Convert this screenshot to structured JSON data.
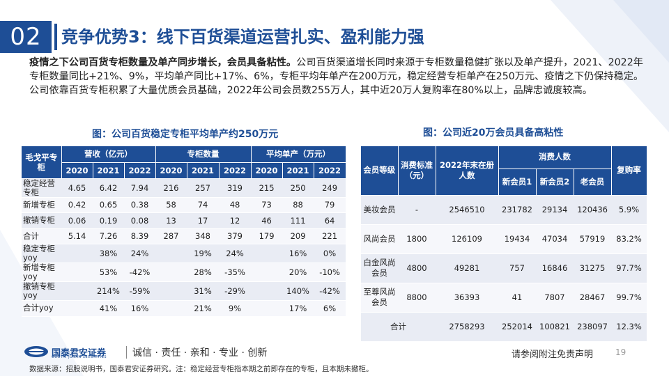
{
  "header": {
    "section_number": "02",
    "title": "竞争优势3：线下百货渠道运营扎实、盈利能力强"
  },
  "intro": {
    "bold": "疫情之下公司百货专柜数量及单产同步增长，会员具备粘性。",
    "text": "公司百货渠道增长同时来源于专柜数量稳健扩张以及单产提升，2021、2022年专柜数量同比+21%、9%，平均单产同比+17%、6%，专柜平均年单产在200万元，稳定经营专柜单产在250万元、疫情之下仍保持稳定。公司依靠百货专柜积累了大量优质会员基础，2022年公司会员数255万人，其中近20万人复购率在80%以上，品牌忠诚度较高。"
  },
  "table1": {
    "caption": "图：公司百货稳定专柜平均单产约250万元",
    "corner": "毛戈平专柜",
    "groups": [
      "营收（亿元）",
      "专柜数量",
      "平均单产（万元）"
    ],
    "years": [
      "2020",
      "2021",
      "2022"
    ],
    "rows": [
      {
        "label": "稳定经营专柜",
        "cells": [
          "4.65",
          "6.42",
          "7.94",
          "216",
          "257",
          "319",
          "215",
          "250",
          "249"
        ]
      },
      {
        "label": "新增专柜",
        "cells": [
          "0.42",
          "0.65",
          "0.38",
          "58",
          "74",
          "48",
          "73",
          "88",
          "79"
        ]
      },
      {
        "label": "撤销专柜",
        "cells": [
          "0.06",
          "0.19",
          "0.08",
          "13",
          "17",
          "12",
          "46",
          "111",
          "64"
        ]
      },
      {
        "label": "合计",
        "cells": [
          "5.14",
          "7.26",
          "8.39",
          "287",
          "348",
          "379",
          "179",
          "209",
          "221"
        ]
      },
      {
        "label": "稳定专柜yoy",
        "cells": [
          "",
          "38%",
          "24%",
          "",
          "19%",
          "24%",
          "",
          "16%",
          "0%"
        ]
      },
      {
        "label": "新增专柜yoy",
        "cells": [
          "",
          "53%",
          "-42%",
          "",
          "28%",
          "-35%",
          "",
          "20%",
          "-10%"
        ]
      },
      {
        "label": "撤销专柜yoy",
        "cells": [
          "",
          "214%",
          "-59%",
          "",
          "31%",
          "-29%",
          "",
          "140%",
          "-42%"
        ]
      },
      {
        "label": "合计yoy",
        "cells": [
          "",
          "41%",
          "16%",
          "",
          "21%",
          "9%",
          "",
          "17%",
          "6%"
        ]
      }
    ]
  },
  "table2": {
    "caption": "图：公司近20万会员具备高粘性",
    "headers": {
      "level": "会员等级",
      "standard": "消费标准（元）",
      "registered": "2022年末在册人数",
      "consumers": "消费人数",
      "new1": "新会员1",
      "new2": "新会员2",
      "old": "老会员",
      "repurchase": "复购率"
    },
    "rows": [
      {
        "level": "美妆会员",
        "standard": "-",
        "registered": "2546510",
        "new1": "231782",
        "new2": "29134",
        "old": "120436",
        "repurchase": "5.9%"
      },
      {
        "level": "风尚会员",
        "standard": "1800",
        "registered": "126109",
        "new1": "19434",
        "new2": "47034",
        "old": "57919",
        "repurchase": "83.2%"
      },
      {
        "level": "白金风尚会员",
        "standard": "4800",
        "registered": "49281",
        "new1": "757",
        "new2": "16846",
        "old": "31275",
        "repurchase": "97.7%"
      },
      {
        "level": "至尊风尚会员",
        "standard": "8800",
        "registered": "36393",
        "new1": "41",
        "new2": "7807",
        "old": "28467",
        "repurchase": "99.7%"
      }
    ],
    "total": {
      "label": "合计",
      "registered": "2758293",
      "new1": "252014",
      "new2": "100821",
      "old": "238097",
      "repurchase": "12.3%"
    }
  },
  "footer": {
    "logo_name": "国泰君安证券",
    "logo_sub": "GUOTAI JUNAN SECURITIES",
    "slogan": "诚信 · 责任 · 亲和 · 专业 · 创新",
    "disclaimer": "请参阅附注免责声明",
    "page": "19",
    "source": "数据来源：招股说明书，国泰君安证券研究。注：稳定经营专柜指本期之前即存在的专柜，且本期未撤柜。"
  },
  "colors": {
    "brand": "#1e4e96",
    "row_light": "#f6f7fb",
    "row_dark": "#e9ecf4"
  },
  "icons": {
    "logo": "guotai-junan-logo-icon"
  }
}
